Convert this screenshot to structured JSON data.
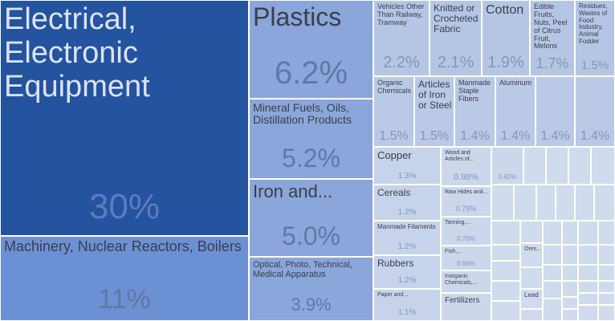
{
  "chart_data": {
    "type": "treemap",
    "categories": [
      "Electrical, Electronic Equipment",
      "Machinery, Nuclear Reactors, Boilers",
      "Plastics",
      "Mineral Fuels, Oils, Distillation Products",
      "Iron and...",
      "Optical, Photo, Technical, Medical Apparatus",
      "Vehicles Other Than Railway, Tramway",
      "Knitted or Crocheted Fabric",
      "Cotton",
      "Edible Fruits, Nuts, Peel of Citrus Fruit, Melons",
      "Residues, Wastes of Food Industry, Animal Fodder",
      "Organic Chemicals",
      "Articles of Iron or Steel",
      "Manmade Staple Fibers",
      "Aluminum",
      null,
      null,
      "Copper",
      "Cereals",
      "Manmade Filaments",
      "Rubbers",
      "Paper and...",
      "Wood and Articles of...",
      "Raw Hides and...",
      "Tanning,...",
      "Fish,...",
      "Inorganic Chemicals,...",
      "Fertilizers",
      null,
      "Ores...",
      "Lead"
    ],
    "values": [
      30,
      11,
      6.2,
      5.2,
      5.0,
      3.9,
      2.2,
      2.1,
      1.9,
      1.7,
      1.5,
      1.5,
      1.5,
      1.4,
      1.4,
      1.4,
      1.4,
      1.3,
      1.2,
      1.2,
      1.2,
      1.1,
      0.98,
      0.79,
      0.7,
      0.66,
      0.6,
      0.6,
      0.62,
      0.3,
      0.3
    ],
    "value_labels": [
      "30%",
      "11%",
      "6.2%",
      "5.2%",
      "5.0%",
      "3.9%",
      "2.2%",
      "2.1%",
      "1.9%",
      "1.7%",
      "1.5%",
      "1.5%",
      "1.5%",
      "1.4%",
      "1.4%",
      "1.4%",
      "1.4%",
      "1.3%",
      "1.2%",
      "1.2%",
      "1.2%",
      "1.1%",
      "0.98%",
      "0.79%",
      "0.70%",
      "0.66%",
      null,
      null,
      "0.62%",
      null,
      null
    ],
    "colors": [
      "#24539f",
      "#6c90d4",
      "#8aa6da",
      "#8aa6da",
      "#8aa6da",
      "#8aa6da",
      "#b5c6e5",
      "#b5c6e5",
      "#b5c6e5",
      "#b5c6e5",
      "#b5c6e5",
      "#b9c9e6",
      "#b9c9e6",
      "#b9c9e6",
      "#b9c9e6",
      "#b9c9e6",
      "#b9c9e6",
      "#c7d3ea",
      "#c7d3ea",
      "#c7d3ea",
      "#c7d3ea",
      "#c7d3ea",
      "#ccd7ec",
      "#ccd7ec",
      "#ccd7ec",
      "#ccd7ec",
      "#ccd7ec",
      "#ccd7ec",
      "#ccd7ec",
      "#d0dbed",
      "#d0dbed"
    ]
  }
}
